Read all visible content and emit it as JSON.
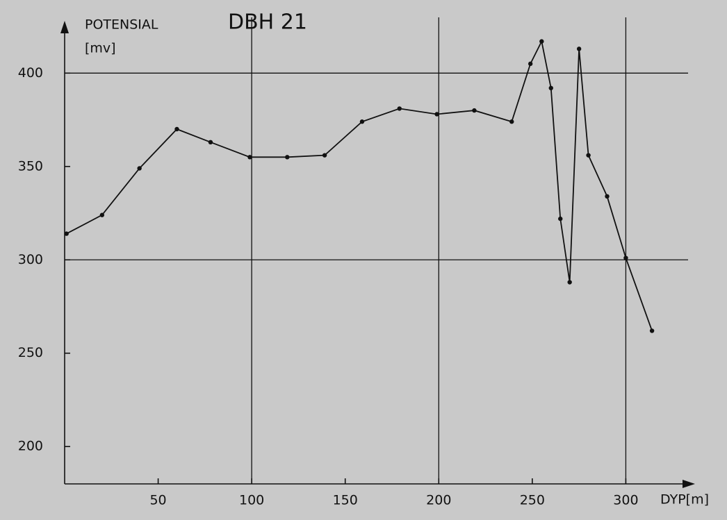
{
  "chart_data": {
    "type": "line",
    "title": "DBH 21",
    "ylabel": "POTENSIAL",
    "yunit": "[mv]",
    "xlabel": "DYP[m]",
    "x": [
      1,
      20,
      40,
      60,
      78,
      99,
      119,
      139,
      159,
      179,
      199,
      219,
      239,
      249,
      255,
      260,
      265,
      270,
      275,
      280,
      290,
      300,
      314
    ],
    "series": [
      {
        "name": "DBH 21",
        "color": "#111111",
        "values": [
          314,
          324,
          349,
          370,
          363,
          355,
          355,
          356,
          374,
          381,
          378,
          380,
          374,
          405,
          417,
          392,
          322,
          288,
          413,
          356,
          334,
          301,
          262
        ]
      }
    ],
    "xlim": [
      0,
      337
    ],
    "ylim": [
      180,
      428
    ],
    "xticks": [
      50,
      100,
      150,
      200,
      250,
      300
    ],
    "yticks": [
      200,
      250,
      300,
      350,
      400
    ],
    "xgrid": [
      100,
      200,
      300
    ],
    "ygrid": [
      300,
      400
    ]
  }
}
